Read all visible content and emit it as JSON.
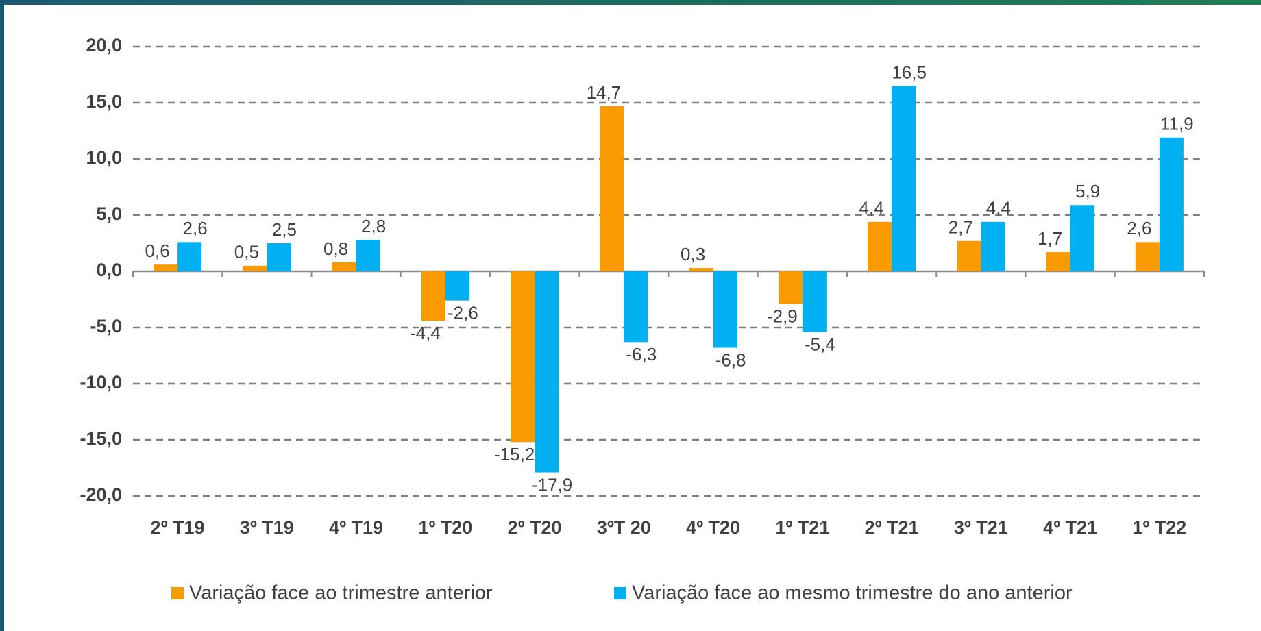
{
  "chart_data": {
    "type": "bar",
    "categories": [
      "2º T19",
      "3º T19",
      "4º T19",
      "1º T20",
      "2º T20",
      "3ºT 20",
      "4º T20",
      "1º T21",
      "2º T21",
      "3º T21",
      "4º T21",
      "1º T22"
    ],
    "series": [
      {
        "name": "Variação face ao trimestre anterior",
        "color": "#f99b00",
        "values": [
          0.6,
          0.5,
          0.8,
          -4.4,
          -15.2,
          14.7,
          0.3,
          -2.9,
          4.4,
          2.7,
          1.7,
          2.6
        ],
        "value_labels": [
          "0,6",
          "0,5",
          "0,8",
          "-4,4",
          "-15,2",
          "14,7",
          "0,3",
          "-2,9",
          "4,4",
          "2,7",
          "1,7",
          "2,6"
        ]
      },
      {
        "name": "Variação face ao mesmo trimestre do ano anterior",
        "color": "#00b0f0",
        "values": [
          2.6,
          2.5,
          2.8,
          -2.6,
          -17.9,
          -6.3,
          -6.8,
          -5.4,
          16.5,
          4.4,
          5.9,
          11.9
        ],
        "value_labels": [
          "2,6",
          "2,5",
          "2,8",
          "-2,6",
          "-17,9",
          "-6,3",
          "-6,8",
          "-5,4",
          "16,5",
          "4,4",
          "5,9",
          "11,9"
        ]
      }
    ],
    "ylim": [
      -20,
      20
    ],
    "yticks": [
      {
        "value": -20,
        "label": "-20,0"
      },
      {
        "value": -15,
        "label": "-15,0"
      },
      {
        "value": -10,
        "label": "-10,0"
      },
      {
        "value": -5,
        "label": "-5,0"
      },
      {
        "value": 0,
        "label": "0,0"
      },
      {
        "value": 5,
        "label": "5,0"
      },
      {
        "value": 10,
        "label": "10,0"
      },
      {
        "value": 15,
        "label": "15,0"
      },
      {
        "value": 20,
        "label": "20,0"
      }
    ],
    "grid": true
  }
}
